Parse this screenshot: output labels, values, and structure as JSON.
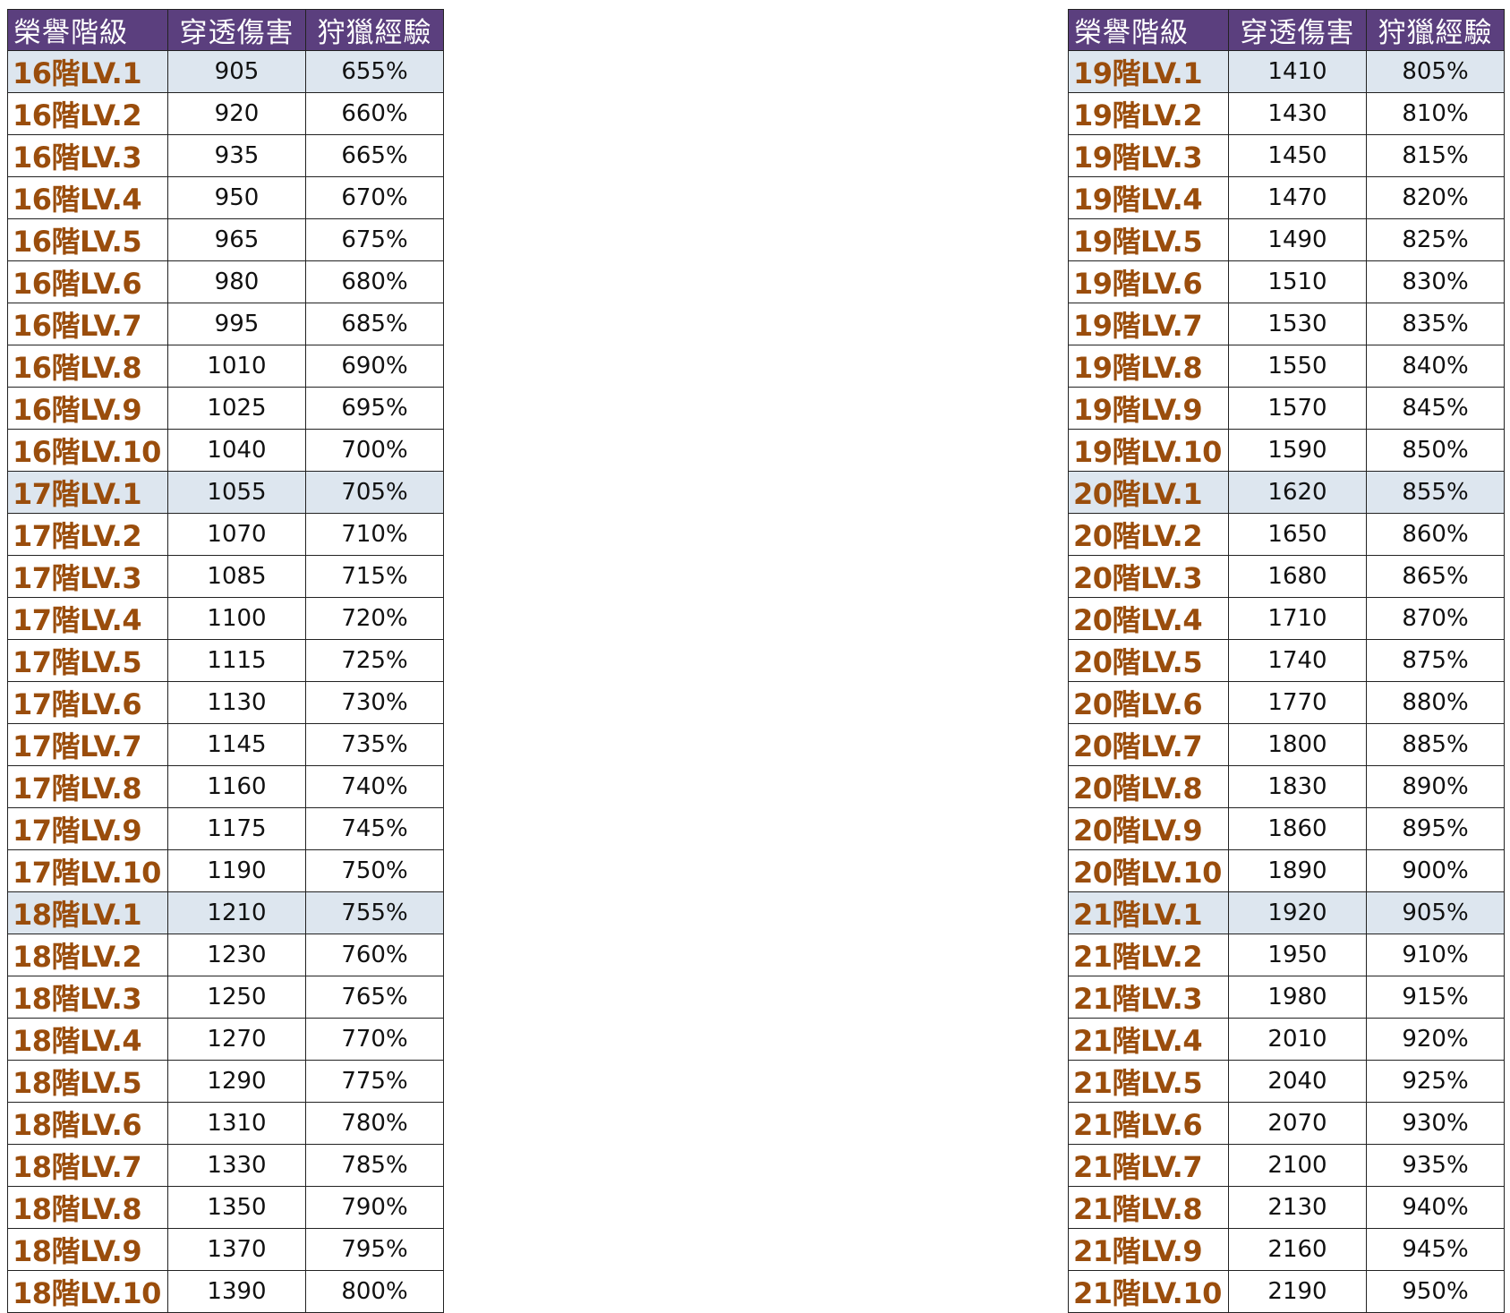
{
  "headers": [
    "榮譽階級",
    "穿透傷害",
    "狩獵經驗"
  ],
  "left_table": [
    {
      "level": "16階LV.1",
      "damage": "905",
      "exp": "655%"
    },
    {
      "level": "16階LV.2",
      "damage": "920",
      "exp": "660%"
    },
    {
      "level": "16階LV.3",
      "damage": "935",
      "exp": "665%"
    },
    {
      "level": "16階LV.4",
      "damage": "950",
      "exp": "670%"
    },
    {
      "level": "16階LV.5",
      "damage": "965",
      "exp": "675%"
    },
    {
      "level": "16階LV.6",
      "damage": "980",
      "exp": "680%"
    },
    {
      "level": "16階LV.7",
      "damage": "995",
      "exp": "685%"
    },
    {
      "level": "16階LV.8",
      "damage": "1010",
      "exp": "690%"
    },
    {
      "level": "16階LV.9",
      "damage": "1025",
      "exp": "695%"
    },
    {
      "level": "16階LV.10",
      "damage": "1040",
      "exp": "700%"
    },
    {
      "level": "17階LV.1",
      "damage": "1055",
      "exp": "705%"
    },
    {
      "level": "17階LV.2",
      "damage": "1070",
      "exp": "710%"
    },
    {
      "level": "17階LV.3",
      "damage": "1085",
      "exp": "715%"
    },
    {
      "level": "17階LV.4",
      "damage": "1100",
      "exp": "720%"
    },
    {
      "level": "17階LV.5",
      "damage": "1115",
      "exp": "725%"
    },
    {
      "level": "17階LV.6",
      "damage": "1130",
      "exp": "730%"
    },
    {
      "level": "17階LV.7",
      "damage": "1145",
      "exp": "735%"
    },
    {
      "level": "17階LV.8",
      "damage": "1160",
      "exp": "740%"
    },
    {
      "level": "17階LV.9",
      "damage": "1175",
      "exp": "745%"
    },
    {
      "level": "17階LV.10",
      "damage": "1190",
      "exp": "750%"
    },
    {
      "level": "18階LV.1",
      "damage": "1210",
      "exp": "755%"
    },
    {
      "level": "18階LV.2",
      "damage": "1230",
      "exp": "760%"
    },
    {
      "level": "18階LV.3",
      "damage": "1250",
      "exp": "765%"
    },
    {
      "level": "18階LV.4",
      "damage": "1270",
      "exp": "770%"
    },
    {
      "level": "18階LV.5",
      "damage": "1290",
      "exp": "775%"
    },
    {
      "level": "18階LV.6",
      "damage": "1310",
      "exp": "780%"
    },
    {
      "level": "18階LV.7",
      "damage": "1330",
      "exp": "785%"
    },
    {
      "level": "18階LV.8",
      "damage": "1350",
      "exp": "790%"
    },
    {
      "level": "18階LV.9",
      "damage": "1370",
      "exp": "795%"
    },
    {
      "level": "18階LV.10",
      "damage": "1390",
      "exp": "800%"
    }
  ],
  "right_table": [
    {
      "level": "19階LV.1",
      "damage": "1410",
      "exp": "805%"
    },
    {
      "level": "19階LV.2",
      "damage": "1430",
      "exp": "810%"
    },
    {
      "level": "19階LV.3",
      "damage": "1450",
      "exp": "815%"
    },
    {
      "level": "19階LV.4",
      "damage": "1470",
      "exp": "820%"
    },
    {
      "level": "19階LV.5",
      "damage": "1490",
      "exp": "825%"
    },
    {
      "level": "19階LV.6",
      "damage": "1510",
      "exp": "830%"
    },
    {
      "level": "19階LV.7",
      "damage": "1530",
      "exp": "835%"
    },
    {
      "level": "19階LV.8",
      "damage": "1550",
      "exp": "840%"
    },
    {
      "level": "19階LV.9",
      "damage": "1570",
      "exp": "845%"
    },
    {
      "level": "19階LV.10",
      "damage": "1590",
      "exp": "850%"
    },
    {
      "level": "20階LV.1",
      "damage": "1620",
      "exp": "855%"
    },
    {
      "level": "20階LV.2",
      "damage": "1650",
      "exp": "860%"
    },
    {
      "level": "20階LV.3",
      "damage": "1680",
      "exp": "865%"
    },
    {
      "level": "20階LV.4",
      "damage": "1710",
      "exp": "870%"
    },
    {
      "level": "20階LV.5",
      "damage": "1740",
      "exp": "875%"
    },
    {
      "level": "20階LV.6",
      "damage": "1770",
      "exp": "880%"
    },
    {
      "level": "20階LV.7",
      "damage": "1800",
      "exp": "885%"
    },
    {
      "level": "20階LV.8",
      "damage": "1830",
      "exp": "890%"
    },
    {
      "level": "20階LV.9",
      "damage": "1860",
      "exp": "895%"
    },
    {
      "level": "20階LV.10",
      "damage": "1890",
      "exp": "900%"
    },
    {
      "level": "21階LV.1",
      "damage": "1920",
      "exp": "905%"
    },
    {
      "level": "21階LV.2",
      "damage": "1950",
      "exp": "910%"
    },
    {
      "level": "21階LV.3",
      "damage": "1980",
      "exp": "915%"
    },
    {
      "level": "21階LV.4",
      "damage": "2010",
      "exp": "920%"
    },
    {
      "level": "21階LV.5",
      "damage": "2040",
      "exp": "925%"
    },
    {
      "level": "21階LV.6",
      "damage": "2070",
      "exp": "930%"
    },
    {
      "level": "21階LV.7",
      "damage": "2100",
      "exp": "935%"
    },
    {
      "level": "21階LV.8",
      "damage": "2130",
      "exp": "940%"
    },
    {
      "level": "21階LV.9",
      "damage": "2160",
      "exp": "945%"
    },
    {
      "level": "21階LV.10",
      "damage": "2190",
      "exp": "950%"
    }
  ],
  "colors": {
    "header_bg": "#5b3f7e",
    "header_text": "#ffffff",
    "level_text": "#9a4d0c",
    "tier_start_row_bg": "#dde6ef"
  }
}
